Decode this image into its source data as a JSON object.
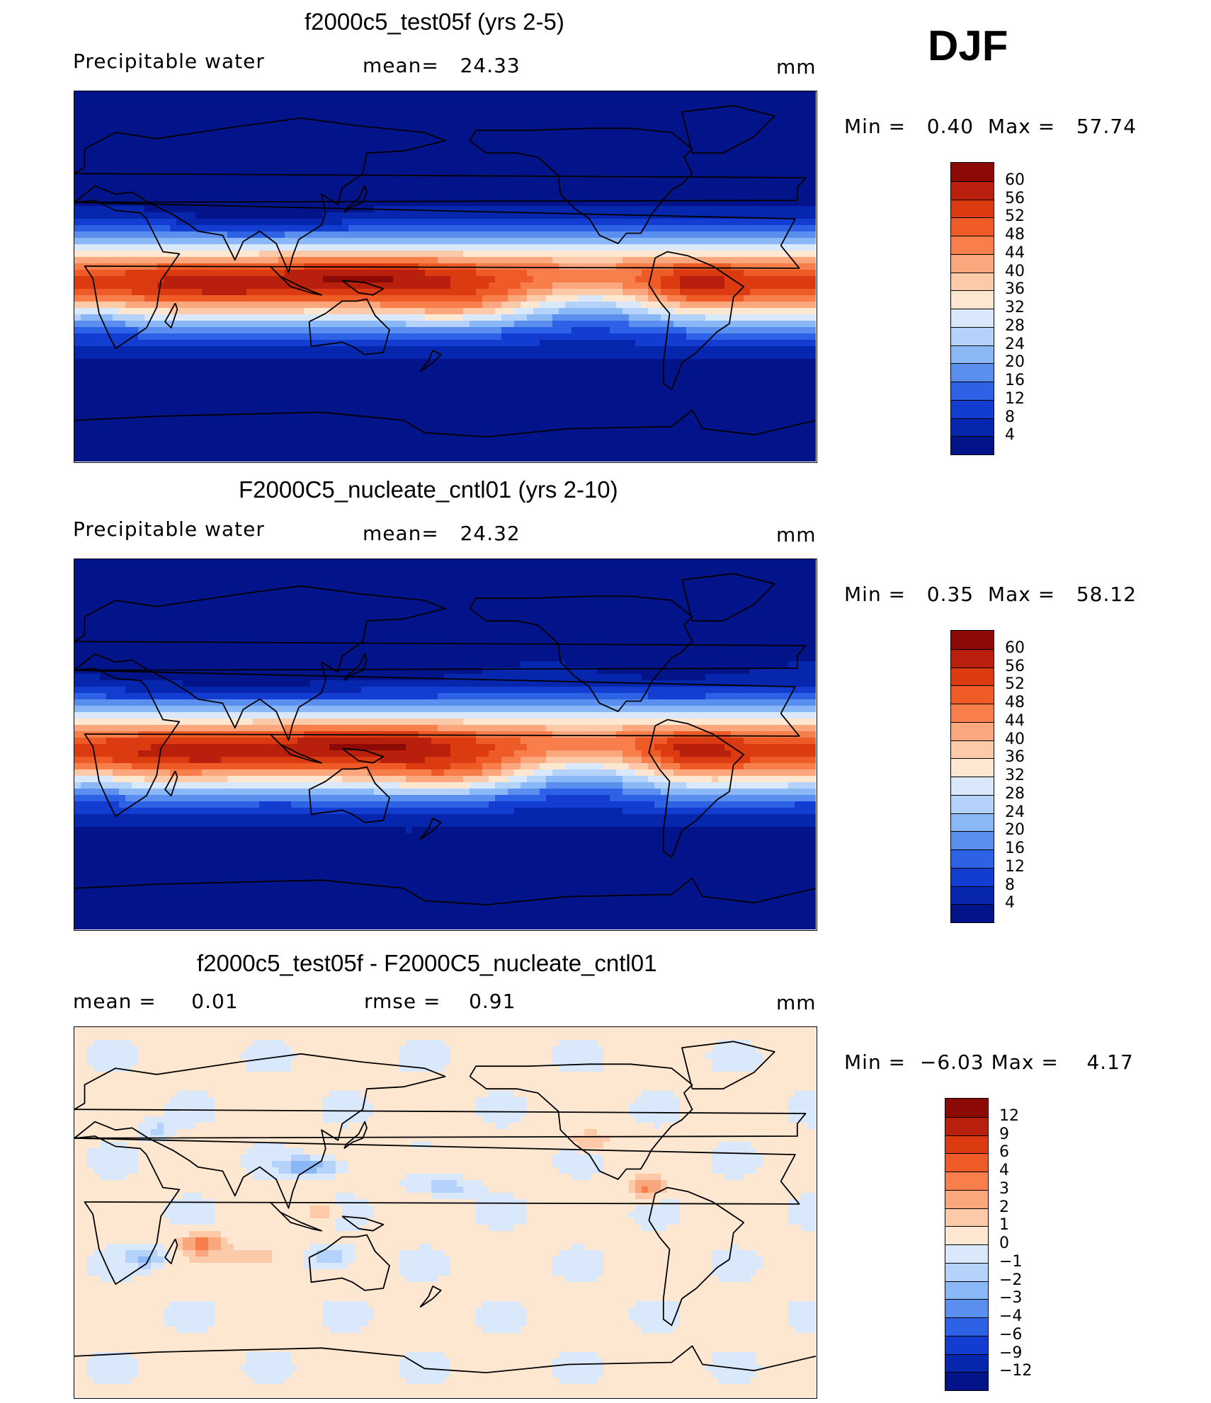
{
  "season_label": "DJF",
  "units": "mm",
  "panels": [
    {
      "title": "f2000c5_test05f (yrs 2-5)",
      "left_label": "Precipitable water",
      "mid_label": "mean=",
      "mid_value": "24.33",
      "right_label": "mm",
      "min_label": "Min =",
      "min_value": "0.40",
      "max_label": "Max =",
      "max_value": "57.74",
      "field_type": "absolute",
      "colorbar": {
        "labels": [
          "60",
          "56",
          "52",
          "48",
          "44",
          "40",
          "36",
          "32",
          "28",
          "24",
          "20",
          "16",
          "12",
          "8",
          "4"
        ],
        "colors": [
          "#8c0a05",
          "#b81f0c",
          "#dc3a10",
          "#ef5b26",
          "#f87f4c",
          "#fba77e",
          "#fdcaa9",
          "#fde7d1",
          "#d9e8fb",
          "#b5d2fa",
          "#8ab7f6",
          "#5a8ff0",
          "#2d62e6",
          "#123dd0",
          "#0626ad",
          "#03148a"
        ]
      }
    },
    {
      "title": "F2000C5_nucleate_cntl01 (yrs 2-10)",
      "left_label": "Precipitable water",
      "mid_label": "mean=",
      "mid_value": "24.32",
      "right_label": "mm",
      "min_label": "Min =",
      "min_value": "0.35",
      "max_label": "Max =",
      "max_value": "58.12",
      "field_type": "absolute",
      "colorbar": {
        "labels": [
          "60",
          "56",
          "52",
          "48",
          "44",
          "40",
          "36",
          "32",
          "28",
          "24",
          "20",
          "16",
          "12",
          "8",
          "4"
        ],
        "colors": [
          "#8c0a05",
          "#b81f0c",
          "#dc3a10",
          "#ef5b26",
          "#f87f4c",
          "#fba77e",
          "#fdcaa9",
          "#fde7d1",
          "#d9e8fb",
          "#b5d2fa",
          "#8ab7f6",
          "#5a8ff0",
          "#2d62e6",
          "#123dd0",
          "#0626ad",
          "#03148a"
        ]
      }
    },
    {
      "title": "f2000c5_test05f - F2000C5_nucleate_cntl01",
      "left_label": "mean =",
      "left_value": "0.01",
      "mid_label": "rmse =",
      "mid_value": "0.91",
      "right_label": "mm",
      "min_label": "Min =",
      "min_value": "−6.03",
      "max_label": "Max =",
      "max_value": "4.17",
      "field_type": "difference",
      "colorbar": {
        "labels": [
          "12",
          "9",
          "6",
          "4",
          "3",
          "2",
          "1",
          "0",
          "−1",
          "−2",
          "−3",
          "−4",
          "−6",
          "−9",
          "−12"
        ],
        "colors": [
          "#8c0a05",
          "#b81f0c",
          "#dc3a10",
          "#ef5b26",
          "#f87f4c",
          "#fba77e",
          "#fdcaa9",
          "#fde7d1",
          "#d9e8fb",
          "#b5d2fa",
          "#8ab7f6",
          "#5a8ff0",
          "#2d62e6",
          "#123dd0",
          "#0626ad",
          "#03148a"
        ]
      }
    }
  ]
}
